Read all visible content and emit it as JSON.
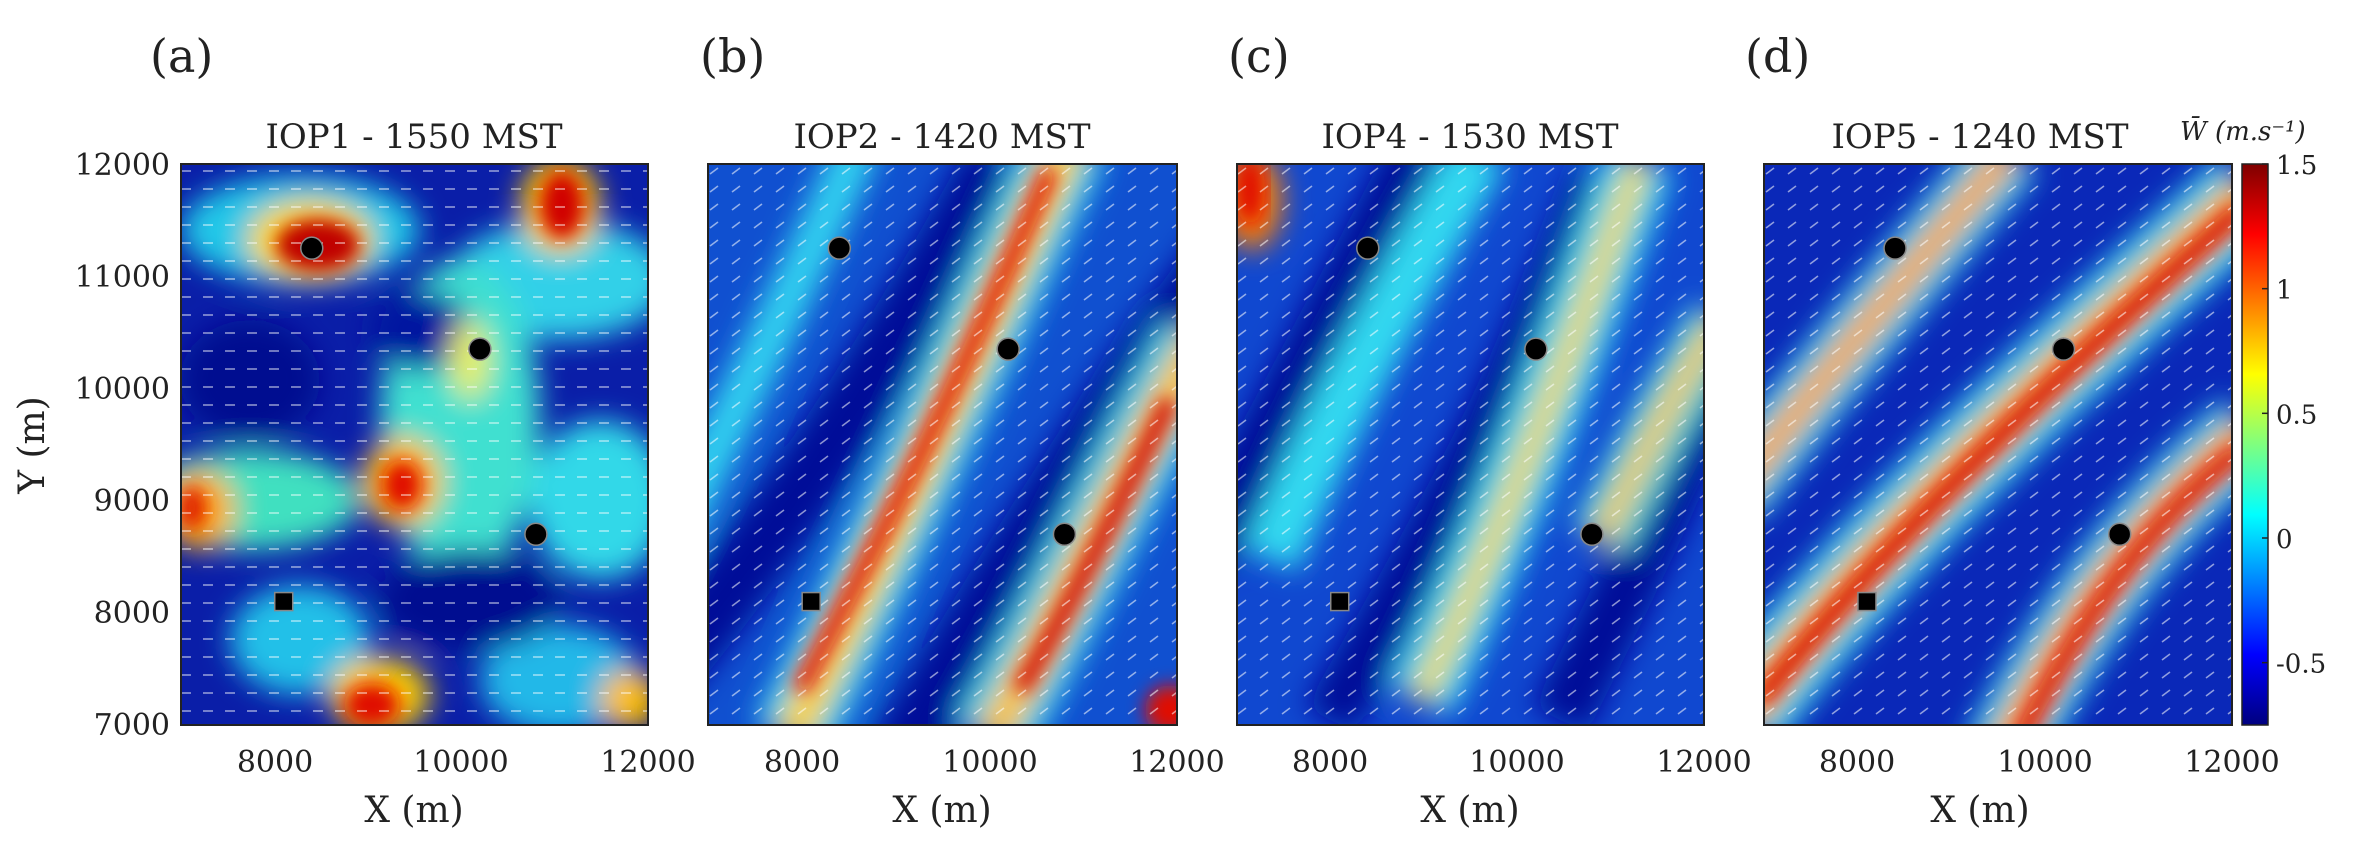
{
  "figure": {
    "ylabel": "Y (m)",
    "xlabel": "X (m)",
    "xticks": [
      "8000",
      "10000",
      "12000"
    ],
    "yticks": [
      "12000",
      "11000",
      "10000",
      "9000",
      "8000",
      "7000"
    ]
  },
  "chart_data": [
    {
      "type": "heatmap",
      "panel_label": "(a)",
      "title": "IOP1 - 1550 MST",
      "xlabel": "X (m)",
      "ylabel": "Y (m)",
      "xlim": [
        7000,
        12000
      ],
      "ylim": [
        7000,
        12000
      ],
      "xticks": [
        8000,
        10000,
        12000
      ],
      "yticks": [
        7000,
        8000,
        9000,
        10000,
        11000,
        12000
      ],
      "pattern": "cellular",
      "circles": [
        [
          8400,
          11250
        ],
        [
          10200,
          10350
        ],
        [
          10800,
          8700
        ]
      ],
      "square": [
        8100,
        8100
      ]
    },
    {
      "type": "heatmap",
      "panel_label": "(b)",
      "title": "IOP2 - 1420 MST",
      "xlabel": "X (m)",
      "xlim": [
        7000,
        12000
      ],
      "ylim": [
        7000,
        12000
      ],
      "xticks": [
        8000,
        10000,
        12000
      ],
      "pattern": "bands",
      "circles": [
        [
          8400,
          11250
        ],
        [
          10200,
          10350
        ],
        [
          10800,
          8700
        ]
      ],
      "square": [
        8100,
        8100
      ]
    },
    {
      "type": "heatmap",
      "panel_label": "(c)",
      "title": "IOP4 - 1530 MST",
      "xlabel": "X (m)",
      "xlim": [
        7000,
        12000
      ],
      "ylim": [
        7000,
        12000
      ],
      "xticks": [
        8000,
        10000,
        12000
      ],
      "pattern": "bands",
      "circles": [
        [
          8400,
          11250
        ],
        [
          10200,
          10350
        ],
        [
          10800,
          8700
        ]
      ],
      "square": [
        8100,
        8100
      ]
    },
    {
      "type": "heatmap",
      "panel_label": "(d)",
      "title": "IOP5 - 1240 MST",
      "xlabel": "X (m)",
      "xlim": [
        7000,
        12000
      ],
      "ylim": [
        7000,
        12000
      ],
      "xticks": [
        8000,
        10000,
        12000
      ],
      "pattern": "bands",
      "circles": [
        [
          8400,
          11250
        ],
        [
          10200,
          10350
        ],
        [
          10800,
          8700
        ]
      ],
      "square": [
        8100,
        8100
      ]
    }
  ],
  "colorbar": {
    "label": "W̄ (m.s⁻¹)",
    "range": [
      -0.75,
      1.5
    ],
    "ticks": [
      {
        "value": 1.5,
        "text": "1.5"
      },
      {
        "value": 1.0,
        "text": "1"
      },
      {
        "value": 0.5,
        "text": "0.5"
      },
      {
        "value": 0.0,
        "text": "0"
      },
      {
        "value": -0.5,
        "text": "-0.5"
      }
    ],
    "colors": [
      "#00007f",
      "#0000ff",
      "#007fff",
      "#00ffff",
      "#7fff7f",
      "#ffff00",
      "#ff7f00",
      "#ff0000",
      "#7f0000"
    ]
  }
}
